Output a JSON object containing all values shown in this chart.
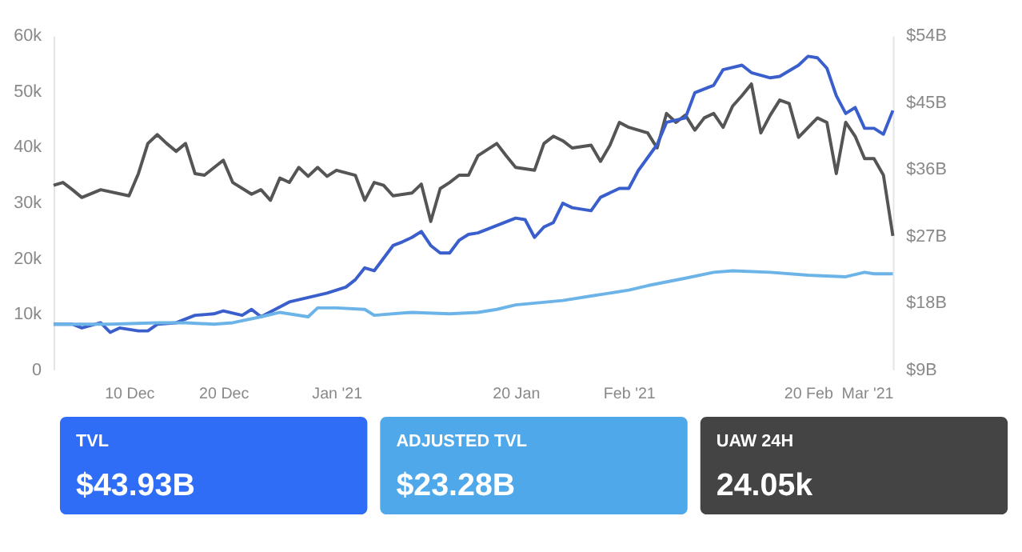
{
  "chart_data": [
    {
      "type": "line",
      "grid": false,
      "legend": false,
      "line_style": "solid",
      "marker": "none",
      "xlim": [
        "2020-12-02",
        "2021-03-01"
      ],
      "xticks": [
        {
          "value": "2020-12-10",
          "label": "10 Dec"
        },
        {
          "value": "2020-12-20",
          "label": "20 Dec"
        },
        {
          "value": "2021-01-01",
          "label": "Jan '21"
        },
        {
          "value": "2021-01-20",
          "label": "20 Jan"
        },
        {
          "value": "2021-02-01",
          "label": "Feb '21"
        },
        {
          "value": "2021-02-20",
          "label": "20 Feb"
        },
        {
          "value": "2021-03-01",
          "label": "Mar '21"
        }
      ],
      "ylim": [
        0,
        60000
      ],
      "yticks": [
        0,
        {
          "value": 10000,
          "label": "10k"
        },
        {
          "value": 20000,
          "label": "20k"
        },
        {
          "value": 30000,
          "label": "30k"
        },
        {
          "value": 40000,
          "label": "40k"
        },
        {
          "value": 50000,
          "label": "50k"
        },
        {
          "value": 60000,
          "label": "60k"
        }
      ],
      "y2lim": [
        9,
        54
      ],
      "y2ticks": [
        {
          "value": 9,
          "label": "$9B"
        },
        {
          "value": 18,
          "label": "$18B"
        },
        {
          "value": 27,
          "label": "$27B"
        },
        {
          "value": 36,
          "label": "$36B"
        },
        {
          "value": 45,
          "label": "$45B"
        },
        {
          "value": 54,
          "label": "$54B"
        }
      ],
      "series": [
        {
          "color": "#555555",
          "x": [
            "2020-12-02",
            "2020-12-03",
            "2020-12-04",
            "2020-12-05",
            "2020-12-07",
            "2020-12-10",
            "2020-12-11",
            "2020-12-12",
            "2020-12-13",
            "2020-12-14",
            "2020-12-15",
            "2020-12-16",
            "2020-12-17",
            "2020-12-18",
            "2020-12-20",
            "2020-12-21",
            "2020-12-23",
            "2020-12-24",
            "2020-12-25",
            "2020-12-26",
            "2020-12-27",
            "2020-12-28",
            "2020-12-29",
            "2020-12-30",
            "2020-12-31",
            "2021-01-01",
            "2021-01-03",
            "2021-01-04",
            "2021-01-05",
            "2021-01-06",
            "2021-01-07",
            "2021-01-09",
            "2021-01-10",
            "2021-01-11",
            "2021-01-12",
            "2021-01-13",
            "2021-01-14",
            "2021-01-15",
            "2021-01-16",
            "2021-01-18",
            "2021-01-19",
            "2021-01-20",
            "2021-01-22",
            "2021-01-23",
            "2021-01-24",
            "2021-01-25",
            "2021-01-26",
            "2021-01-28",
            "2021-01-29",
            "2021-01-30",
            "2021-01-31",
            "2021-02-01",
            "2021-02-03",
            "2021-02-04",
            "2021-02-05",
            "2021-02-06",
            "2021-02-07",
            "2021-02-08",
            "2021-02-09",
            "2021-02-10",
            "2021-02-11",
            "2021-02-12",
            "2021-02-13",
            "2021-02-14",
            "2021-02-15",
            "2021-02-16",
            "2021-02-17",
            "2021-02-18",
            "2021-02-19",
            "2021-02-21",
            "2021-02-22",
            "2021-02-23",
            "2021-02-24",
            "2021-02-25",
            "2021-02-26",
            "2021-02-27",
            "2021-02-28",
            "2021-03-01"
          ],
          "values": [
            33100,
            33600,
            32300,
            30900,
            32300,
            31200,
            35200,
            40600,
            42200,
            40600,
            39200,
            40600,
            35200,
            34900,
            37600,
            33600,
            31500,
            32300,
            30400,
            34400,
            33600,
            36300,
            34700,
            36300,
            34700,
            35800,
            34900,
            30400,
            33600,
            33100,
            31200,
            31700,
            33300,
            26600,
            32500,
            33600,
            34900,
            34900,
            38400,
            40600,
            38400,
            36300,
            35800,
            40600,
            41900,
            41100,
            39800,
            40300,
            37400,
            40300,
            44400,
            43500,
            42500,
            39800,
            46000,
            44400,
            45700,
            43000,
            45200,
            46000,
            43500,
            47300,
            49200,
            51300,
            42500,
            45700,
            48400,
            47800,
            41700,
            45200,
            44400,
            35200,
            44400,
            41900,
            37900,
            37900,
            34900,
            24000
          ]
        },
        {
          "axis": "y2",
          "color": "#3a5fcd",
          "x": [
            "2020-12-02",
            "2020-12-04",
            "2020-12-05",
            "2020-12-07",
            "2020-12-08",
            "2020-12-09",
            "2020-12-11",
            "2020-12-12",
            "2020-12-13",
            "2020-12-15",
            "2020-12-17",
            "2020-12-19",
            "2020-12-20",
            "2020-12-22",
            "2020-12-23",
            "2020-12-24",
            "2020-12-27",
            "2020-12-29",
            "2020-12-31",
            "2021-01-02",
            "2021-01-03",
            "2021-01-04",
            "2021-01-05",
            "2021-01-07",
            "2021-01-08",
            "2021-01-09",
            "2021-01-10",
            "2021-01-11",
            "2021-01-12",
            "2021-01-13",
            "2021-01-14",
            "2021-01-15",
            "2021-01-16",
            "2021-01-18",
            "2021-01-20",
            "2021-01-21",
            "2021-01-22",
            "2021-01-23",
            "2021-01-24",
            "2021-01-25",
            "2021-01-26",
            "2021-01-28",
            "2021-01-29",
            "2021-01-31",
            "2021-02-01",
            "2021-02-02",
            "2021-02-04",
            "2021-02-05",
            "2021-02-07",
            "2021-02-08",
            "2021-02-10",
            "2021-02-11",
            "2021-02-13",
            "2021-02-14",
            "2021-02-16",
            "2021-02-17",
            "2021-02-19",
            "2021-02-20",
            "2021-02-21",
            "2021-02-22",
            "2021-02-23",
            "2021-02-24",
            "2021-02-25",
            "2021-02-26",
            "2021-02-27",
            "2021-02-28",
            "2021-03-01"
          ],
          "values": [
            15.1,
            15.1,
            14.6,
            15.3,
            14.0,
            14.6,
            14.2,
            14.2,
            15.1,
            15.3,
            16.3,
            16.5,
            16.9,
            16.3,
            17.1,
            16.1,
            18.1,
            18.7,
            19.3,
            20.1,
            21.1,
            22.7,
            22.3,
            25.7,
            26.2,
            26.8,
            27.6,
            25.7,
            24.7,
            24.7,
            26.4,
            27.2,
            27.4,
            28.4,
            29.4,
            29.2,
            26.8,
            28.2,
            28.8,
            31.4,
            30.8,
            30.4,
            32.2,
            33.4,
            33.4,
            35.8,
            39.3,
            42.3,
            42.9,
            46.3,
            47.3,
            49.4,
            50.0,
            49.0,
            48.3,
            48.5,
            50.0,
            51.2,
            51.0,
            49.6,
            45.9,
            43.5,
            44.3,
            41.5,
            41.5,
            40.7,
            43.9
          ]
        },
        {
          "axis": "y2",
          "color": "#6cb4e8",
          "x": [
            "2020-12-02",
            "2020-12-08",
            "2020-12-13",
            "2020-12-16",
            "2020-12-19",
            "2020-12-21",
            "2020-12-24",
            "2020-12-26",
            "2020-12-29",
            "2020-12-30",
            "2021-01-01",
            "2021-01-04",
            "2021-01-05",
            "2021-01-09",
            "2021-01-13",
            "2021-01-16",
            "2021-01-18",
            "2021-01-20",
            "2021-01-25",
            "2021-01-28",
            "2021-02-01",
            "2021-02-03",
            "2021-02-07",
            "2021-02-10",
            "2021-02-12",
            "2021-02-16",
            "2021-02-20",
            "2021-02-24",
            "2021-02-26",
            "2021-02-27",
            "2021-03-01"
          ],
          "values": [
            15.1,
            15.1,
            15.3,
            15.3,
            15.1,
            15.3,
            16.1,
            16.7,
            16.1,
            17.3,
            17.3,
            17.1,
            16.3,
            16.7,
            16.5,
            16.7,
            17.1,
            17.7,
            18.3,
            18.9,
            19.7,
            20.3,
            21.3,
            22.1,
            22.3,
            22.1,
            21.7,
            21.5,
            22.1,
            21.9,
            21.9
          ]
        }
      ]
    },
    {
      "type": "other",
      "categories": [
        "TVL",
        "ADJUSTED TVL",
        "UAW 24H"
      ],
      "value_labels": [
        "$43.93B",
        "$23.28B",
        "24.05k"
      ],
      "colors": [
        "#2f6df6",
        "#4ea8ea",
        "#444444"
      ]
    }
  ]
}
